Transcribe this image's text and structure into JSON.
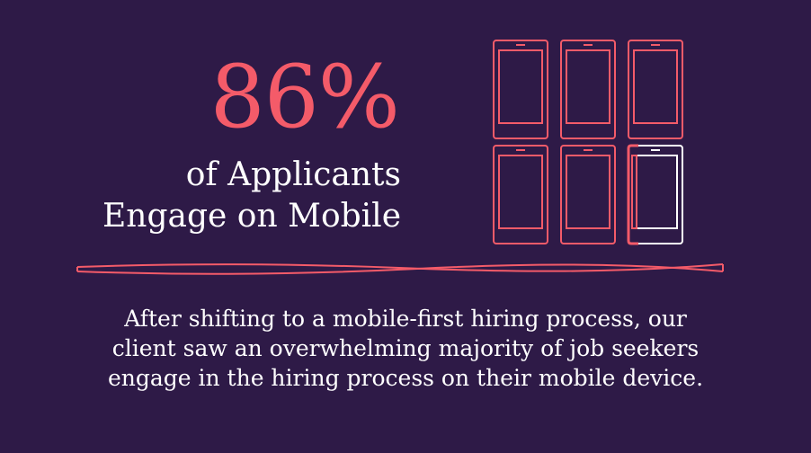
{
  "headline": {
    "stat": "86%",
    "line1": "of Applicants",
    "line2": "Engage on Mobile"
  },
  "phone_grid": {
    "total": 6,
    "highlighted": 0.86,
    "accent_color": "#f45b69",
    "highlight_color": "#ffffff",
    "icon": "smartphone-icon"
  },
  "body": {
    "text": "After shifting to a mobile-first hiring process, our client saw an overwhelming majority of job seekers engage in the hiring process on their mobile device."
  },
  "colors": {
    "background": "#2e1a47",
    "accent": "#f45b69",
    "text": "#ffffff"
  }
}
